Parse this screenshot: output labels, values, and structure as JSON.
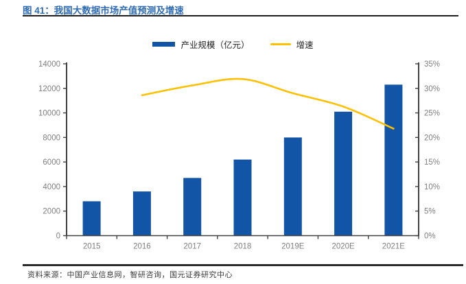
{
  "header": {
    "title": "图 41：我国大数据市场产值预测及增速"
  },
  "legend": {
    "bar_label": "产业规模（亿元）",
    "line_label": "增速"
  },
  "chart_data": {
    "type": "bar+line",
    "title": "我国大数据市场产值预测及增速",
    "categories": [
      "2015",
      "2016",
      "2017",
      "2018",
      "2019E",
      "2020E",
      "2021E"
    ],
    "series": [
      {
        "name": "产业规模（亿元）",
        "type": "bar",
        "axis": "left",
        "color": "#1254A6",
        "values": [
          2800,
          3600,
          4700,
          6200,
          8000,
          10100,
          12300
        ]
      },
      {
        "name": "增速",
        "type": "line",
        "axis": "right",
        "color": "#FFC000",
        "values": [
          null,
          28.6,
          30.6,
          31.9,
          29.0,
          26.3,
          21.8
        ]
      }
    ],
    "left_axis": {
      "min": 0,
      "max": 14000,
      "step": 2000,
      "tick_labels": [
        "0",
        "2000",
        "4000",
        "6000",
        "8000",
        "10000",
        "12000",
        "14000"
      ]
    },
    "right_axis": {
      "min": 0,
      "max": 35,
      "step": 5,
      "tick_labels": [
        "0%",
        "5%",
        "10%",
        "15%",
        "20%",
        "25%",
        "30%",
        "35%"
      ]
    },
    "grid": false,
    "legend_position": "top-center"
  },
  "footer": {
    "source": "资料来源：中国产业信息网，智研咨询，国元证券研究中心"
  },
  "colors": {
    "bar": "#1254A6",
    "line": "#FFC000",
    "title": "#2F6CB3",
    "axis": "#404040",
    "tick_text": "#7F7F7F",
    "rule": "#1D1D1D"
  }
}
